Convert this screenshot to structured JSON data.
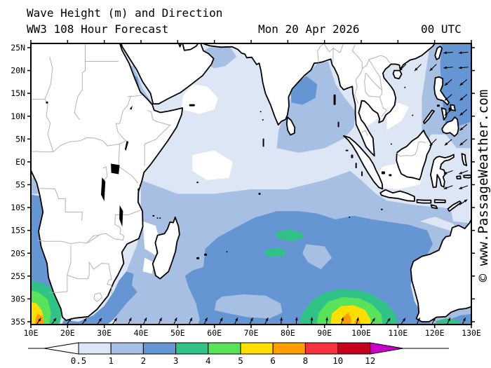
{
  "header": {
    "title": "Wave Height (m) and Direction",
    "subtitle": "WW3 108 Hour Forecast",
    "date": "Mon 20 Apr 2026",
    "time": "00 UTC"
  },
  "watermark": "© www.PassageWeather.com",
  "axes": {
    "lat_labels": [
      "25N",
      "20N",
      "15N",
      "10N",
      "5N",
      "EQ",
      "5S",
      "10S",
      "15S",
      "20S",
      "25S",
      "30S",
      "35S"
    ],
    "lon_labels": [
      "10E",
      "20E",
      "30E",
      "40E",
      "50E",
      "60E",
      "70E",
      "80E",
      "90E",
      "100E",
      "110E",
      "120E",
      "130E"
    ]
  },
  "colorbar": {
    "tick_labels": [
      "0.5",
      "1",
      "2",
      "3",
      "4",
      "5",
      "6",
      "8",
      "10",
      "12"
    ],
    "cell_colors": [
      "#dde6f5",
      "#a7bfe3",
      "#6595d2",
      "#30c287",
      "#58e358",
      "#ffdf00",
      "#ff9e00",
      "#f5333f",
      "#c4001e"
    ],
    "under_color": "#ffffff",
    "over_color": "#cc00cc",
    "outline_color": "#000000"
  },
  "map_style": {
    "ocean_base": "#dde6f5",
    "land": "#ffffff",
    "coastline": "#000000",
    "country_border": "#b3b3b3",
    "arrow_color": "#000000",
    "frame_color": "#000000"
  }
}
